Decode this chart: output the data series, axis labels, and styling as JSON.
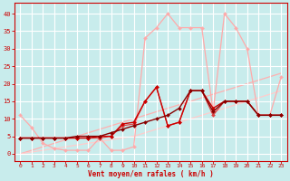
{
  "title": "",
  "xlabel": "Vent moyen/en rafales ( km/h )",
  "ylabel": "",
  "background_color": "#c8ecec",
  "grid_color": "#ffffff",
  "xlim": [
    -0.5,
    23.5
  ],
  "ylim": [
    -2,
    43
  ],
  "xticks": [
    0,
    1,
    2,
    3,
    4,
    5,
    6,
    7,
    8,
    9,
    10,
    11,
    12,
    13,
    14,
    15,
    16,
    17,
    18,
    19,
    20,
    21,
    22,
    23
  ],
  "yticks": [
    0,
    5,
    10,
    15,
    20,
    25,
    30,
    35,
    40
  ],
  "lines": [
    {
      "x": [
        0,
        1,
        2,
        3,
        4,
        5,
        6,
        7,
        8,
        9,
        10,
        11,
        12,
        13,
        14,
        15,
        16,
        17,
        18,
        19,
        20,
        21,
        22,
        23
      ],
      "y": [
        0,
        1,
        2,
        3,
        4,
        5,
        6,
        7,
        8,
        9,
        10,
        11,
        12,
        13,
        14,
        15,
        16,
        17,
        18,
        19,
        20,
        21,
        22,
        23
      ],
      "color": "#ffb0b0",
      "lw": 0.9,
      "marker": null,
      "ms": 0,
      "zorder": 1
    },
    {
      "x": [
        0,
        1,
        2,
        3,
        4,
        5,
        6,
        7,
        8,
        9,
        10,
        11,
        12,
        13,
        14,
        15,
        16,
        17,
        18,
        19,
        20,
        21,
        22,
        23
      ],
      "y": [
        0,
        0.5,
        1,
        1.5,
        2,
        2.5,
        3,
        3.5,
        4,
        4.5,
        5,
        6,
        7,
        8,
        9,
        10,
        11,
        12,
        13,
        14,
        15,
        16,
        17,
        18
      ],
      "color": "#ffcccc",
      "lw": 0.9,
      "marker": null,
      "ms": 0,
      "zorder": 1
    },
    {
      "x": [
        0,
        1,
        2,
        3,
        4,
        5,
        6,
        7,
        8,
        9,
        10,
        11,
        12,
        13,
        14,
        15,
        16,
        17,
        18,
        19,
        20,
        21,
        22,
        23
      ],
      "y": [
        11,
        7.5,
        3,
        1.5,
        1,
        1,
        1,
        4.5,
        1,
        1,
        2,
        33,
        36,
        40,
        36,
        36,
        36,
        12,
        40,
        36,
        30,
        11,
        11,
        22
      ],
      "color": "#ffaaaa",
      "lw": 0.9,
      "marker": "D",
      "ms": 2.0,
      "zorder": 2
    },
    {
      "x": [
        0,
        1,
        2,
        3,
        4,
        5,
        6,
        7,
        8,
        9,
        10,
        11,
        12,
        13,
        14,
        15,
        16,
        17,
        18,
        19,
        20,
        21,
        22,
        23
      ],
      "y": [
        4.5,
        4.5,
        4.5,
        4.5,
        4.5,
        4.5,
        4.5,
        4.5,
        5,
        8,
        8.5,
        15,
        19,
        8,
        9,
        18,
        18,
        11,
        15,
        15,
        15,
        11,
        11,
        11
      ],
      "color": "#dd4444",
      "lw": 0.9,
      "marker": "D",
      "ms": 2.0,
      "zorder": 3
    },
    {
      "x": [
        0,
        1,
        2,
        3,
        4,
        5,
        6,
        7,
        8,
        9,
        10,
        11,
        12,
        13,
        14,
        15,
        16,
        17,
        18,
        19,
        20,
        21,
        22,
        23
      ],
      "y": [
        4.5,
        4.5,
        4.5,
        4.5,
        4.5,
        4.5,
        4.5,
        5,
        5,
        8.5,
        9,
        15,
        19,
        8,
        9,
        18,
        18,
        13,
        15,
        15,
        15,
        11,
        11,
        11
      ],
      "color": "#cc0000",
      "lw": 1.0,
      "marker": "D",
      "ms": 2.0,
      "zorder": 4
    },
    {
      "x": [
        0,
        1,
        2,
        3,
        4,
        5,
        6,
        7,
        8,
        9,
        10,
        11,
        12,
        13,
        14,
        15,
        16,
        17,
        18,
        19,
        20,
        21,
        22,
        23
      ],
      "y": [
        4.5,
        4.5,
        4.5,
        4.5,
        4.5,
        5,
        5,
        5,
        6,
        7,
        8,
        9,
        10,
        11,
        13,
        18,
        18,
        12,
        15,
        15,
        15,
        11,
        11,
        11
      ],
      "color": "#880000",
      "lw": 1.0,
      "marker": "D",
      "ms": 2.0,
      "zorder": 5
    }
  ]
}
